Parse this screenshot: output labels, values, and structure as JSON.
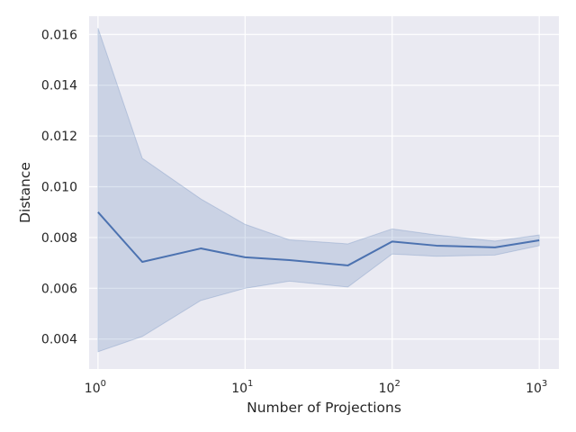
{
  "chart_data": {
    "type": "line",
    "title": "",
    "xlabel": "Number of Projections",
    "ylabel": "Distance",
    "xscale": "log",
    "xlim": [
      0.87,
      1360
    ],
    "ylim": [
      0.00282,
      0.01672
    ],
    "grid": true,
    "background_color": "#eaeaf2",
    "grid_color": "#ffffff",
    "line_color": "#4c72b0",
    "band_color": "#4c72b0",
    "x_ticks": [
      {
        "value": 1,
        "base": "10",
        "exp": "0"
      },
      {
        "value": 10,
        "base": "10",
        "exp": "1"
      },
      {
        "value": 100,
        "base": "10",
        "exp": "2"
      },
      {
        "value": 1000,
        "base": "10",
        "exp": "3"
      }
    ],
    "y_ticks": [
      0.004,
      0.006,
      0.008,
      0.01,
      0.012,
      0.014,
      0.016
    ],
    "y_tick_labels": [
      "0.004",
      "0.006",
      "0.008",
      "0.010",
      "0.012",
      "0.014",
      "0.016"
    ],
    "series": [
      {
        "x": [
          1,
          2,
          5,
          10,
          20,
          50,
          100,
          200,
          500,
          1000
        ],
        "y": [
          0.009,
          0.00704,
          0.00757,
          0.00722,
          0.00711,
          0.0069,
          0.00784,
          0.00768,
          0.00761,
          0.00789
        ],
        "lower": [
          0.0035,
          0.0041,
          0.00552,
          0.006,
          0.00628,
          0.00605,
          0.00735,
          0.00726,
          0.00731,
          0.00768
        ],
        "upper": [
          0.01625,
          0.01112,
          0.00952,
          0.00852,
          0.00791,
          0.00775,
          0.00834,
          0.0081,
          0.00786,
          0.0081
        ]
      }
    ]
  }
}
